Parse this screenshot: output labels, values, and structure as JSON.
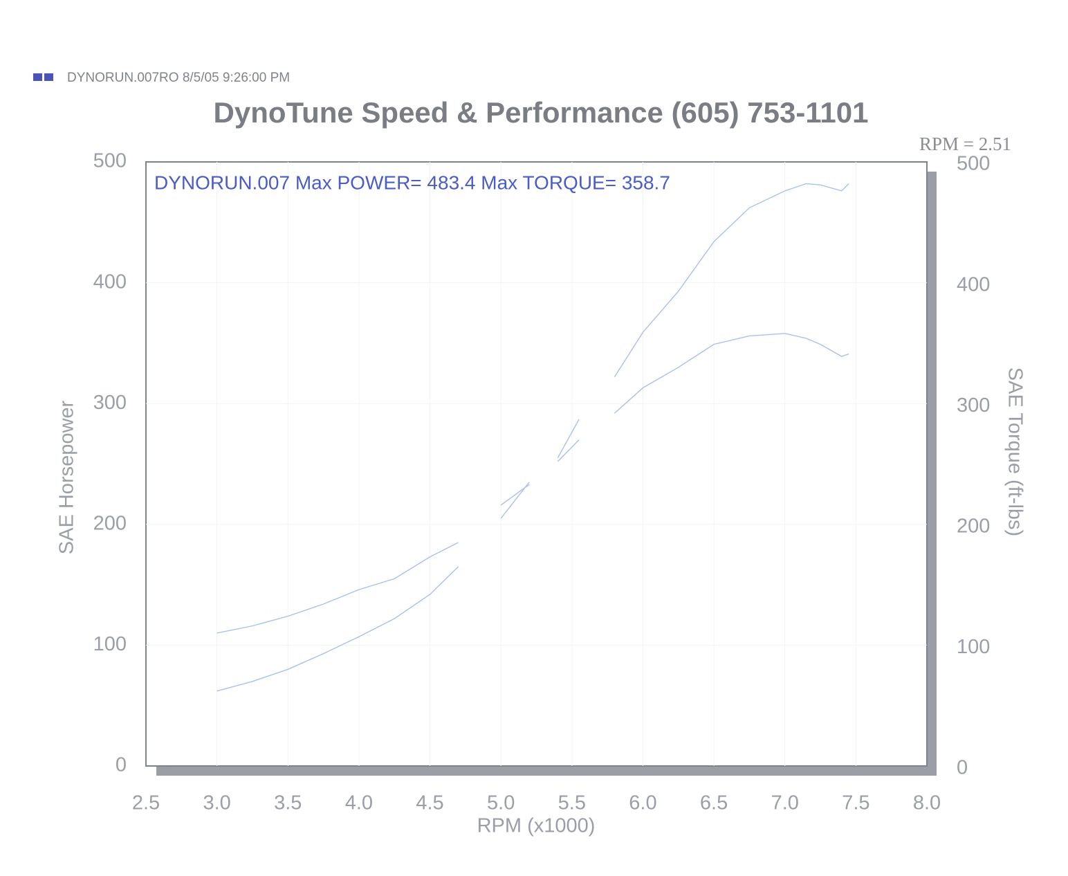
{
  "chart_data": {
    "type": "line",
    "header": "DYNORUN.007RO  8/5/05 9:26:00 PM",
    "header_color": "#4a55b8",
    "title": "DynoTune Speed & Performance  (605) 753-1101",
    "corner_note": "RPM = 2.51",
    "annotation": "DYNORUN.007  Max POWER= 483.4 Max TORQUE= 358.7",
    "xlabel": "RPM (x1000)",
    "ylabel": "SAE Horsepower",
    "y2label": "SAE Torque (ft-lbs)",
    "x": [
      3.0,
      3.25,
      3.5,
      3.75,
      4.0,
      4.25,
      4.5,
      4.7,
      4.85,
      5.0,
      5.2,
      5.3,
      5.4,
      5.55,
      5.65,
      5.8,
      6.0,
      6.25,
      6.5,
      6.75,
      7.0,
      7.15,
      7.25,
      7.4,
      7.45
    ],
    "series": [
      {
        "name": "SAE Horsepower",
        "color": "#a9bff2",
        "values": [
          62,
          70,
          80,
          93,
          107,
          122,
          142,
          165,
          null,
          205,
          235,
          null,
          255,
          287,
          null,
          322,
          359,
          393,
          434,
          462,
          476,
          482,
          481,
          476,
          482
        ]
      },
      {
        "name": "SAE Torque",
        "color": "#a9bff2",
        "axis": "y2",
        "values": [
          110,
          116,
          124,
          134,
          146,
          155,
          173,
          185,
          null,
          216,
          233,
          null,
          252,
          270,
          null,
          292,
          313,
          330,
          349,
          356,
          358,
          354,
          349,
          339,
          341
        ]
      }
    ],
    "xlim": [
      2.5,
      8.0
    ],
    "xticks": [
      2.5,
      {
        "value": 3,
        "label": "3.0"
      },
      3.5,
      {
        "value": 4,
        "label": "4.0"
      },
      4.5,
      {
        "value": 5,
        "label": "5.0"
      },
      5.5,
      {
        "value": 6,
        "label": "6.0"
      },
      6.5,
      {
        "value": 7,
        "label": "7.0"
      },
      7.5,
      {
        "value": 8,
        "label": "8.0"
      }
    ],
    "ylim": [
      0,
      500
    ],
    "yticks": [
      0,
      100,
      200,
      300,
      400,
      500
    ],
    "y2lim": [
      0,
      500
    ],
    "y2ticks": [
      0,
      100,
      200,
      300,
      400,
      500
    ],
    "grid": true
  }
}
